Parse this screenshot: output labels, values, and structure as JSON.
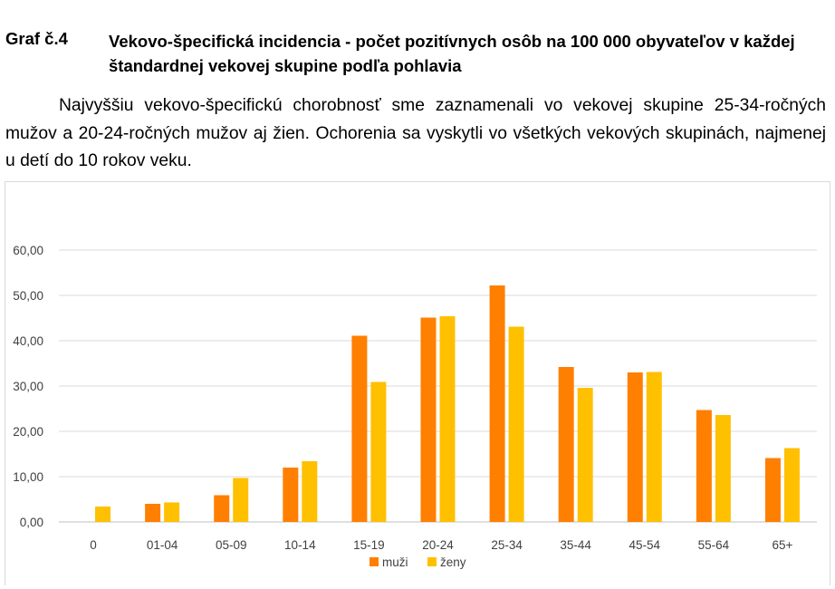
{
  "heading": {
    "number": "Graf č.4",
    "title": "Vekovo-špecifická incidencia - počet pozitívnych osôb na 100 000 obyvateľov v každej štandardnej vekovej skupine podľa pohlavia"
  },
  "paragraph": "Najvyššiu vekovo-špecifickú chorobnosť sme zaznamenali vo vekovej skupine 25-34-ročných mužov a 20-24-ročných mužov aj žien. Ochorenia sa vyskytli vo všetkých vekových skupinách, najmenej u detí do 10 rokov veku.",
  "colors": {
    "men": "#ff7f00",
    "women": "#ffc000",
    "grid": "#d9d9d9",
    "axis": "#bfbfbf"
  },
  "chart_data": {
    "type": "bar",
    "title": "",
    "xlabel": "",
    "ylabel": "",
    "categories": [
      "0",
      "01-04",
      "05-09",
      "10-14",
      "15-19",
      "20-24",
      "25-34",
      "35-44",
      "45-54",
      "55-64",
      "65+"
    ],
    "series": [
      {
        "name": "muži",
        "values": [
          0.0,
          4.0,
          5.9,
          12.0,
          41.1,
          45.1,
          52.2,
          34.2,
          33.0,
          24.7,
          14.1
        ]
      },
      {
        "name": "ženy",
        "values": [
          3.4,
          4.3,
          9.7,
          13.4,
          30.9,
          45.4,
          43.1,
          29.6,
          33.1,
          23.6,
          16.3
        ]
      }
    ],
    "ylim": [
      0,
      60
    ],
    "yticks": [
      "0,00",
      "10,00",
      "20,00",
      "30,00",
      "40,00",
      "50,00",
      "60,00"
    ],
    "grid": true,
    "legend": "bottom-center"
  }
}
